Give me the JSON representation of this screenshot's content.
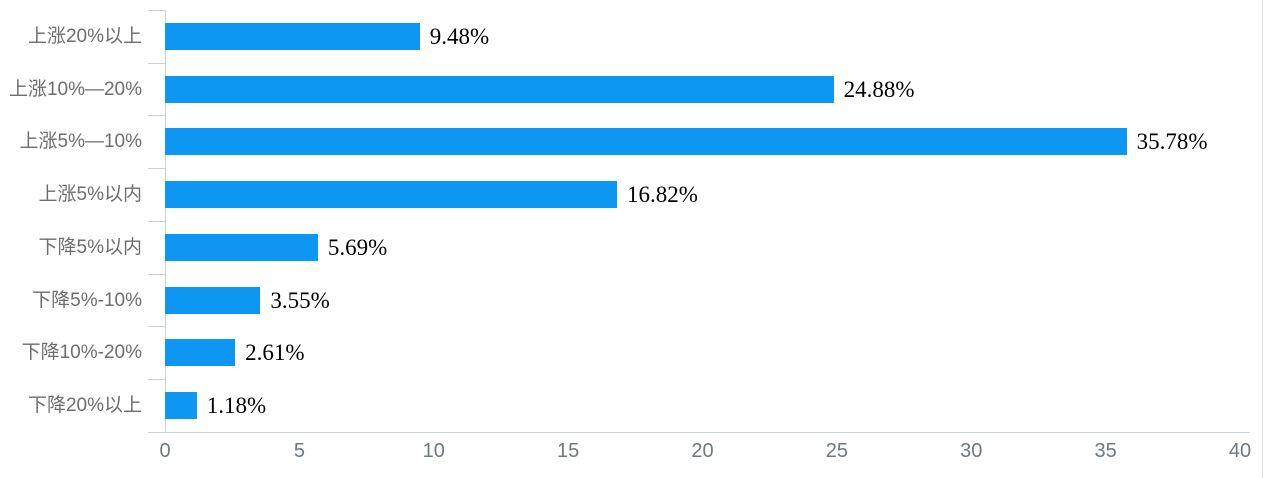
{
  "chart_data": {
    "type": "bar",
    "orientation": "horizontal",
    "title": "",
    "xlabel": "",
    "ylabel": "",
    "categories": [
      "上涨20%以上",
      "上涨10%—20%",
      "上涨5%—10%",
      "上涨5%以内",
      "下降5%以内",
      "下降5%-10%",
      "下降10%-20%",
      "下降20%以上"
    ],
    "values": [
      9.48,
      24.88,
      35.78,
      16.82,
      5.69,
      3.55,
      2.61,
      1.18
    ],
    "value_labels": [
      "9.48%",
      "24.88%",
      "35.78%",
      "16.82%",
      "5.69%",
      "3.55%",
      "2.61%",
      "1.18%"
    ],
    "x_ticks": [
      "0",
      "5",
      "10",
      "15",
      "20",
      "25",
      "30",
      "35",
      "40"
    ],
    "xlim": [
      0,
      40
    ],
    "grid": "off",
    "legend": "none",
    "colors": {
      "bar": "#0d96f2",
      "axis_line": "#c9d3da",
      "category_label": "#6e6e6e",
      "tick_label": "#70787f",
      "value_label": "#000000"
    }
  }
}
